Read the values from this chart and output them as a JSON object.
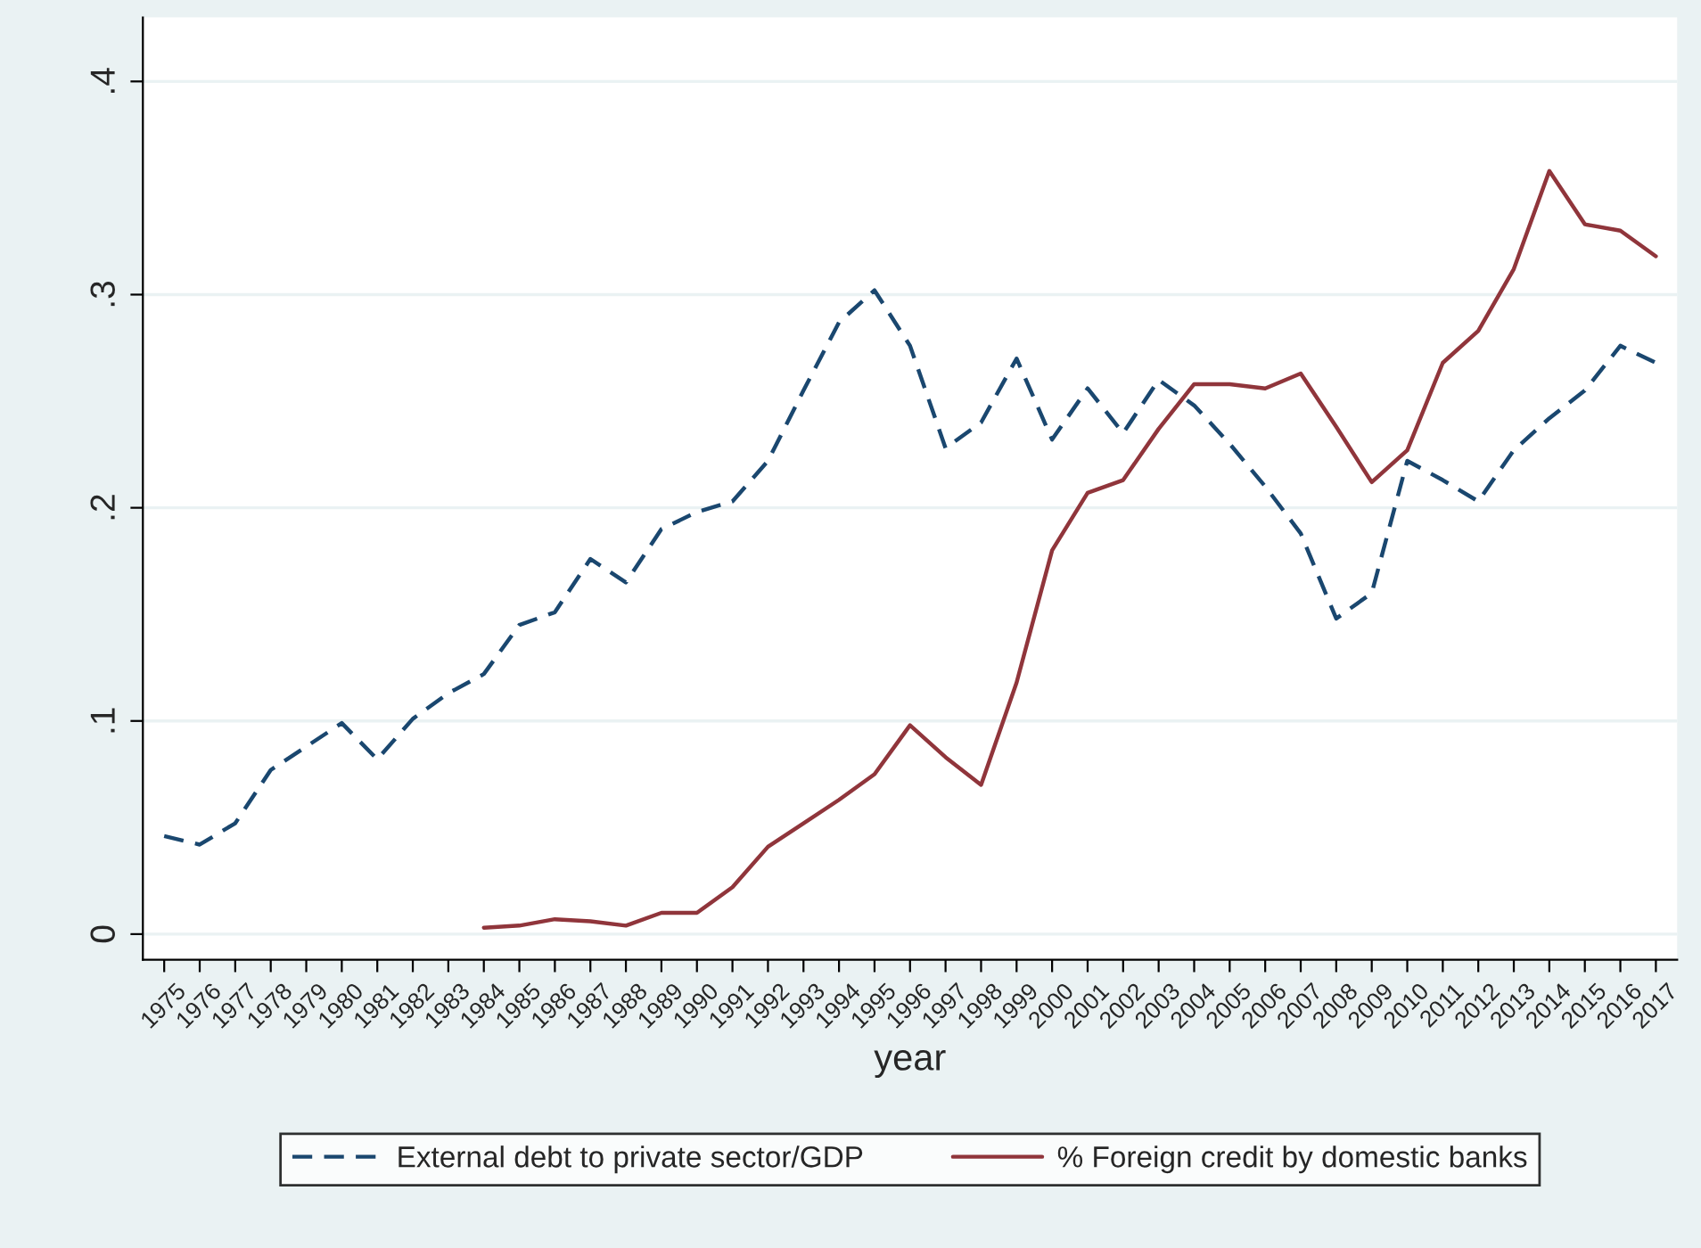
{
  "chart_data": {
    "type": "line",
    "xlabel": "year",
    "x": [
      1975,
      1976,
      1977,
      1978,
      1979,
      1980,
      1981,
      1982,
      1983,
      1984,
      1985,
      1986,
      1987,
      1988,
      1989,
      1990,
      1991,
      1992,
      1993,
      1994,
      1995,
      1996,
      1997,
      1998,
      1999,
      2000,
      2001,
      2002,
      2003,
      2004,
      2005,
      2006,
      2007,
      2008,
      2009,
      2010,
      2011,
      2012,
      2013,
      2014,
      2015,
      2016,
      2017
    ],
    "series": [
      {
        "name": "External debt to private sector/GDP",
        "color": "#1a476f",
        "line_style": "dashed",
        "values": [
          0.046,
          0.042,
          0.052,
          0.077,
          0.088,
          0.099,
          0.082,
          0.101,
          0.113,
          0.122,
          0.145,
          0.151,
          0.176,
          0.165,
          0.19,
          0.198,
          0.203,
          0.222,
          0.255,
          0.287,
          0.302,
          0.276,
          0.228,
          0.24,
          0.27,
          0.232,
          0.256,
          0.235,
          0.26,
          0.248,
          0.23,
          0.21,
          0.188,
          0.148,
          0.16,
          0.222,
          0.213,
          0.203,
          0.227,
          0.242,
          0.255,
          0.276,
          0.268
        ]
      },
      {
        "name": "% Foreign credit by domestic banks",
        "color": "#90353b",
        "line_style": "solid",
        "values": [
          null,
          null,
          null,
          null,
          null,
          null,
          null,
          null,
          null,
          0.003,
          0.004,
          0.007,
          0.006,
          0.004,
          0.01,
          0.01,
          0.022,
          0.041,
          0.052,
          0.063,
          0.075,
          0.098,
          0.083,
          0.07,
          0.118,
          0.18,
          0.207,
          0.213,
          0.237,
          0.258,
          0.258,
          0.256,
          0.263,
          0.238,
          0.212,
          0.227,
          0.268,
          0.283,
          0.312,
          0.358,
          0.333,
          0.33,
          0.318
        ]
      }
    ],
    "xlim": [
      1974.4,
      2017.6
    ],
    "xticks": [
      1975,
      1976,
      1977,
      1978,
      1979,
      1980,
      1981,
      1982,
      1983,
      1984,
      1985,
      1986,
      1987,
      1988,
      1989,
      1990,
      1991,
      1992,
      1993,
      1994,
      1995,
      1996,
      1997,
      1998,
      1999,
      2000,
      2001,
      2002,
      2003,
      2004,
      2005,
      2006,
      2007,
      2008,
      2009,
      2010,
      2011,
      2012,
      2013,
      2014,
      2015,
      2016,
      2017
    ],
    "ylim": [
      -0.012,
      0.43
    ],
    "yticks": [
      {
        "value": 0,
        "label": "0"
      },
      {
        "value": 0.1,
        "label": ".1"
      },
      {
        "value": 0.2,
        "label": ".2"
      },
      {
        "value": 0.3,
        "label": ".3"
      },
      {
        "value": 0.4,
        "label": ".4"
      }
    ],
    "grid": "y",
    "legend": "bottom"
  }
}
